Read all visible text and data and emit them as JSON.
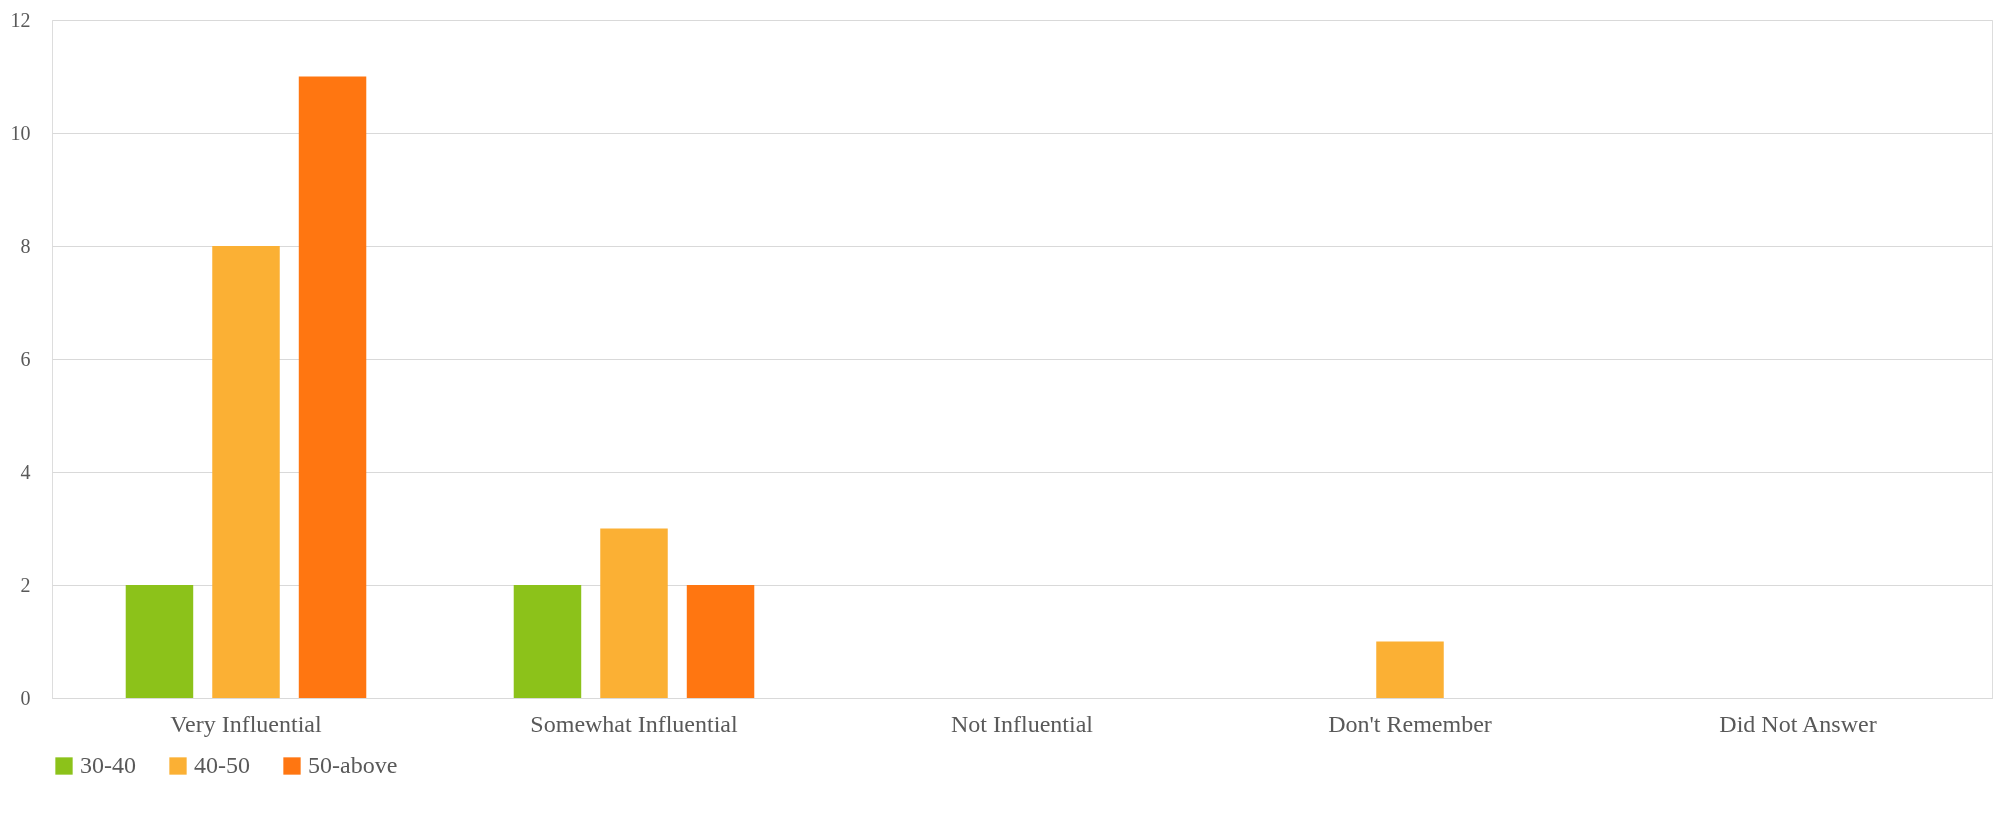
{
  "chart_data": {
    "type": "bar",
    "categories": [
      "Very Influential",
      "Somewhat Influential",
      "Not Influential",
      "Don't Remember",
      "Did Not Answer"
    ],
    "series": [
      {
        "name": "30-40",
        "color": "#8cc21a",
        "values": [
          2,
          2,
          0,
          0,
          0
        ]
      },
      {
        "name": "40-50",
        "color": "#fbb034",
        "values": [
          8,
          3,
          0,
          1,
          0
        ]
      },
      {
        "name": "50-above",
        "color": "#ff7611",
        "values": [
          11,
          2,
          0,
          0,
          0
        ]
      }
    ],
    "ylim": [
      0,
      12
    ],
    "yticks": [
      0,
      2,
      4,
      6,
      8,
      10,
      12
    ],
    "grid": "y",
    "legend": "bottom"
  }
}
